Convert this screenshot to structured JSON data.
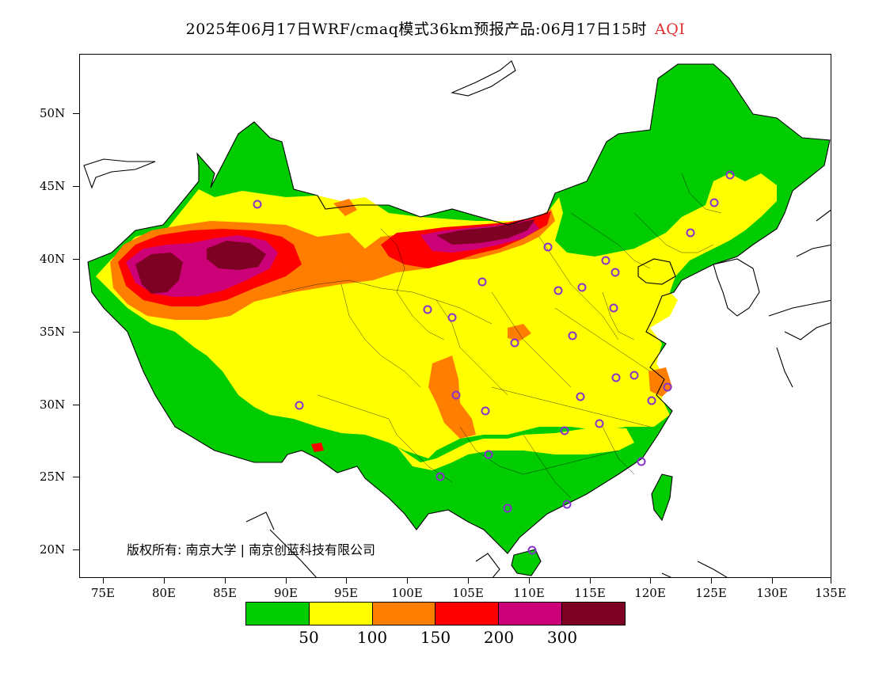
{
  "title": {
    "main": "2025年06月17日WRF/cmaq模式36km预报产品:06月17日15时",
    "variable": "AQI",
    "variable_color": "#e03030"
  },
  "axes": {
    "latitude_labels": [
      "50N",
      "45N",
      "40N",
      "35N",
      "30N",
      "25N",
      "20N"
    ],
    "longitude_labels": [
      "75E",
      "80E",
      "85E",
      "90E",
      "95E",
      "100E",
      "105E",
      "110E",
      "115E",
      "120E",
      "125E",
      "130E",
      "135E"
    ]
  },
  "credit": "版权所有: 南京大学 | 南京创蓝科技有限公司",
  "legend": {
    "colors": [
      "#00cc00",
      "#ffff00",
      "#ff7e00",
      "#ff0000",
      "#cc0077",
      "#7e0023"
    ],
    "labels": [
      "50",
      "100",
      "150",
      "200",
      "300"
    ]
  },
  "colors": {
    "good": "#00cc00",
    "moderate": "#ffff00",
    "usg": "#ff7e00",
    "unhealthy": "#ff0000",
    "very_unhealthy": "#cc0077",
    "hazardous": "#7e0023",
    "station_marker": "#8833cc"
  }
}
